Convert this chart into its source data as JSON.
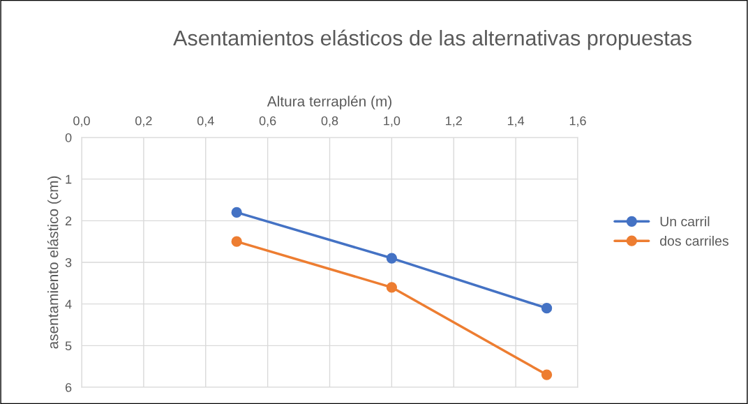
{
  "chart_data": {
    "type": "line",
    "title": "Asentamientos elásticos de las alternativas propuestas",
    "xlabel": "Altura terraplén (m)",
    "ylabel": "asentamiento elástico (cm)",
    "x": [
      0.5,
      1.0,
      1.5
    ],
    "series": [
      {
        "name": "Un carril",
        "color": "#4472c4",
        "values": [
          1.8,
          2.9,
          4.1
        ]
      },
      {
        "name": "dos carriles",
        "color": "#ed7d31",
        "values": [
          2.5,
          3.6,
          5.7
        ]
      }
    ],
    "xlim": [
      0,
      1.6
    ],
    "xticks": [
      {
        "value": 0,
        "label": "0,0"
      },
      {
        "value": 0.2,
        "label": "0,2"
      },
      {
        "value": 0.4,
        "label": "0,4"
      },
      {
        "value": 0.6,
        "label": "0,6"
      },
      {
        "value": 0.8,
        "label": "0,8"
      },
      {
        "value": 1.0,
        "label": "1,0"
      },
      {
        "value": 1.2,
        "label": "1,2"
      },
      {
        "value": 1.4,
        "label": "1,4"
      },
      {
        "value": 1.6,
        "label": "1,6"
      }
    ],
    "ylim": [
      6,
      0
    ],
    "yticks": [
      0,
      1,
      2,
      3,
      4,
      5,
      6
    ],
    "grid": true,
    "legend": "right",
    "marker": "circle",
    "line_style": "solid"
  }
}
